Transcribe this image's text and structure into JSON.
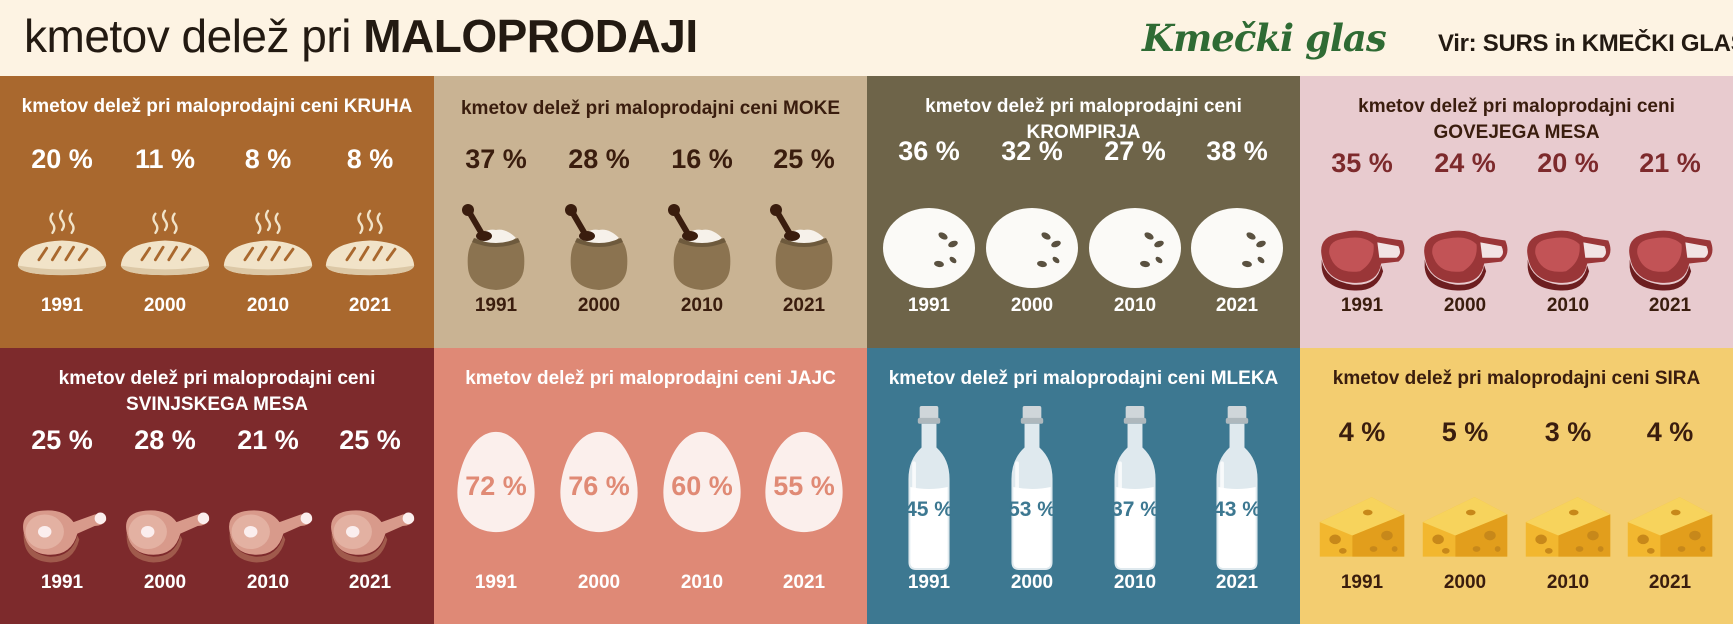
{
  "header": {
    "title_prefix": "kmetov delež pri ",
    "title_bold": "MALOPRODAJI",
    "brand": "Kmečki glas",
    "source": "Vir: SURS in KMEČKI GLAS"
  },
  "common": {
    "label_prefix": "kmetov delež pri maloprodajni ceni",
    "years": [
      "1991",
      "2000",
      "2010",
      "2021"
    ]
  },
  "colors": {
    "bread_bg": "#a9682e",
    "flour_bg": "#c9b393",
    "potato_bg": "#6e6449",
    "beef_bg": "#e8cbcf",
    "pork_bg": "#7d2a2c",
    "eggs_bg": "#df8976",
    "milk_bg": "#3d7891",
    "cheese_bg": "#f3cd70"
  },
  "panels": {
    "bread": {
      "product": "KRUHA",
      "values": [
        "20 %",
        "11 %",
        "8 %",
        "8 %"
      ],
      "icon": "bread-icon"
    },
    "flour": {
      "product": "MOKE",
      "values": [
        "37 %",
        "28 %",
        "16 %",
        "25 %"
      ],
      "icon": "flour-sack-icon"
    },
    "potato": {
      "product": "KROMPIRJA",
      "values": [
        "36 %",
        "32 %",
        "27 %",
        "38 %"
      ],
      "icon": "potato-icon"
    },
    "beef": {
      "product": "GOVEJEGA MESA",
      "values": [
        "35 %",
        "24 %",
        "20 %",
        "21 %"
      ],
      "icon": "steak-icon"
    },
    "pork": {
      "product": "SVINJSKEGA MESA",
      "values": [
        "25 %",
        "28 %",
        "21 %",
        "25 %"
      ],
      "icon": "ham-icon"
    },
    "eggs": {
      "product": "JAJC",
      "values": [
        "72 %",
        "76 %",
        "60 %",
        "55 %"
      ],
      "icon": "egg-icon"
    },
    "milk": {
      "product": "MLEKA",
      "values": [
        "45 %",
        "53 %",
        "37 %",
        "43 %"
      ],
      "icon": "milk-bottle-icon"
    },
    "cheese": {
      "product": "SIRA",
      "values": [
        "4 %",
        "5 %",
        "3 %",
        "4 %"
      ],
      "icon": "cheese-icon"
    }
  }
}
